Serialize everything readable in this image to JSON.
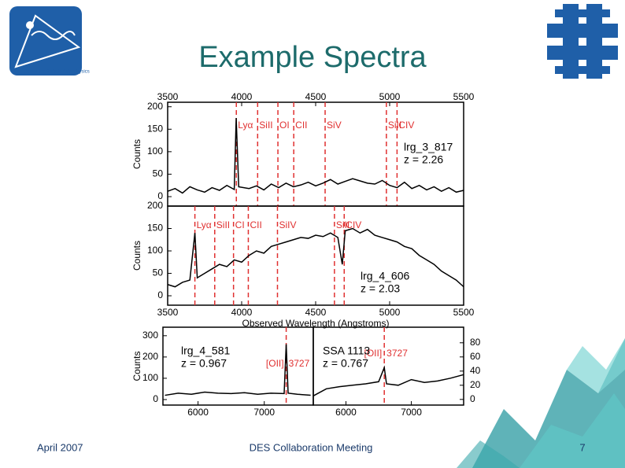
{
  "header": {
    "title": "Example Spectra",
    "logo_text": "Center for Particle Astrophysics"
  },
  "footer": {
    "date": "April 2007",
    "meeting": "DES Collaboration Meeting",
    "page": "7"
  },
  "chart_data": [
    {
      "type": "line",
      "label": "lrg_3_817",
      "redshift": "z = 2.26",
      "ylabel": "Counts",
      "xaxis_position": "top",
      "yaxis_position": "left",
      "xlim": [
        3500,
        5500
      ],
      "xticks": [
        3500,
        4000,
        4500,
        5000,
        5500
      ],
      "ylim": [
        -21,
        210
      ],
      "yticks": [
        0,
        50,
        100,
        150,
        200
      ],
      "color": "#000000",
      "line_color": "#e03030",
      "x": [
        3500,
        3550,
        3600,
        3650,
        3700,
        3750,
        3800,
        3850,
        3900,
        3950,
        3963,
        3980,
        4050,
        4100,
        4150,
        4200,
        4250,
        4300,
        4350,
        4400,
        4450,
        4500,
        4550,
        4600,
        4650,
        4700,
        4750,
        4800,
        4850,
        4900,
        4950,
        5000,
        5050,
        5100,
        5150,
        5200,
        5250,
        5300,
        5350,
        5400,
        5450,
        5500
      ],
      "values": [
        12,
        18,
        8,
        22,
        15,
        10,
        20,
        14,
        25,
        16,
        175,
        22,
        18,
        24,
        15,
        28,
        20,
        30,
        22,
        26,
        32,
        24,
        30,
        38,
        28,
        34,
        40,
        35,
        30,
        28,
        36,
        25,
        20,
        32,
        18,
        25,
        15,
        22,
        12,
        20,
        10,
        14
      ],
      "lines": [
        {
          "label": "Lyα",
          "value": 3964
        },
        {
          "label": "SiII",
          "value": 4108
        },
        {
          "label": "OI",
          "value": 4245
        },
        {
          "label": "CII",
          "value": 4352
        },
        {
          "label": "SiV",
          "value": 4564
        },
        {
          "label": "SiII",
          "value": 4978
        },
        {
          "label": "CIV",
          "value": 5050
        }
      ]
    },
    {
      "type": "line",
      "label": "lrg_4_606",
      "redshift": "z = 2.03",
      "ylabel": "Counts",
      "xlabel": "Observed Wavelength (Angstroms)",
      "xaxis_position": "bottom",
      "yaxis_position": "left",
      "xlim": [
        3500,
        5500
      ],
      "xticks": [
        3500,
        4000,
        4500,
        5000,
        5500
      ],
      "ylim": [
        -21,
        200
      ],
      "yticks": [
        0,
        50,
        100,
        150,
        200
      ],
      "color": "#000000",
      "line_color": "#e03030",
      "x": [
        3500,
        3550,
        3600,
        3650,
        3684,
        3700,
        3750,
        3800,
        3850,
        3900,
        3950,
        4000,
        4050,
        4100,
        4150,
        4200,
        4250,
        4300,
        4350,
        4400,
        4450,
        4500,
        4550,
        4600,
        4650,
        4680,
        4700,
        4750,
        4800,
        4850,
        4900,
        4950,
        5000,
        5050,
        5100,
        5150,
        5200,
        5250,
        5300,
        5350,
        5400,
        5450,
        5500
      ],
      "values": [
        25,
        20,
        30,
        35,
        140,
        40,
        50,
        60,
        70,
        65,
        80,
        75,
        90,
        100,
        95,
        110,
        115,
        120,
        125,
        130,
        128,
        135,
        132,
        140,
        130,
        70,
        145,
        150,
        140,
        148,
        135,
        130,
        125,
        120,
        110,
        105,
        90,
        80,
        70,
        55,
        45,
        35,
        20
      ],
      "lines": [
        {
          "label": "Lyα",
          "value": 3684
        },
        {
          "label": "SiII",
          "value": 3818
        },
        {
          "label": "CI",
          "value": 3945
        },
        {
          "label": "CII",
          "value": 4045
        },
        {
          "label": "SiIV",
          "value": 4242
        },
        {
          "label": "SiII",
          "value": 4627
        },
        {
          "label": "CIV",
          "value": 4693
        }
      ]
    },
    {
      "type": "line",
      "label": "lrg_4_581",
      "redshift": "z = 0.967",
      "ylabel": "Counts",
      "xaxis_position": "bottom",
      "yaxis_position": "left",
      "xlim": [
        5470,
        7740
      ],
      "xticks": [
        6000,
        7000
      ],
      "ylim": [
        -26,
        340
      ],
      "yticks": [
        0,
        100,
        200,
        300
      ],
      "color": "#000000",
      "line_color": "#e03030",
      "x": [
        5500,
        5700,
        5900,
        6100,
        6300,
        6500,
        6700,
        6900,
        7100,
        7300,
        7331,
        7360,
        7500,
        7700
      ],
      "values": [
        20,
        30,
        25,
        35,
        30,
        28,
        32,
        25,
        30,
        28,
        260,
        30,
        25,
        20
      ],
      "lines": [
        {
          "label": "[OII]",
          "value": 7331,
          "rest": 3727
        }
      ]
    },
    {
      "type": "line",
      "label": "SSA 1113",
      "redshift": "z = 0.767",
      "xaxis_position": "bottom",
      "yaxis_position": "right",
      "xlim": [
        5500,
        7800
      ],
      "xticks": [
        6000,
        7000
      ],
      "ylim": [
        -8,
        102
      ],
      "yticks": [
        0,
        20,
        40,
        60,
        80
      ],
      "color": "#000000",
      "line_color": "#e03030",
      "x": [
        5500,
        5700,
        5900,
        6100,
        6300,
        6500,
        6586,
        6620,
        6800,
        7000,
        7200,
        7400,
        7600,
        7800
      ],
      "values": [
        5,
        15,
        18,
        20,
        22,
        25,
        45,
        22,
        20,
        28,
        24,
        26,
        30,
        35
      ],
      "lines": [
        {
          "label": "[OII]",
          "value": 6586,
          "rest": 3727
        }
      ]
    }
  ]
}
